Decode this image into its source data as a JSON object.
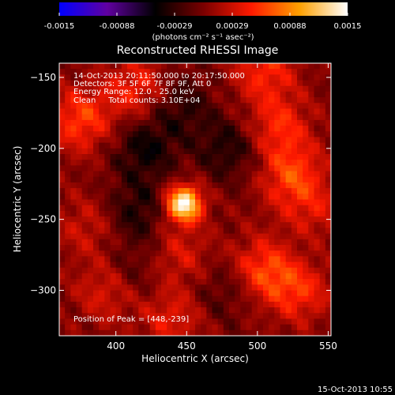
{
  "chart_data": {
    "type": "heatmap",
    "title": "Reconstructed RHESSI Image",
    "xlabel": "Heliocentric X (arcsec)",
    "ylabel": "Heliocentric Y (arcsec)",
    "xlim": [
      360,
      552
    ],
    "ylim": [
      -332,
      -140
    ],
    "x_ticks": [
      400,
      450,
      500,
      550
    ],
    "y_ticks": [
      -150,
      -200,
      -250,
      -300
    ],
    "annotations": [
      "14-Oct-2013 20:11:50.000 to 20:17:50.000",
      "Detectors: 3F 5F 6F 7F 8F 9F, Att 0",
      "Energy Range: 12.0 - 25.0 keV",
      "Clean     Total counts: 3.10E+04"
    ],
    "peak_label": "Position of Peak = [448,-239]",
    "peak": {
      "x": 448,
      "y": -239,
      "value": 0.0015
    },
    "colorbar": {
      "ticks": [
        "-0.0015",
        "-0.00088",
        "-0.00029",
        "0.00029",
        "0.00088",
        "0.0015"
      ],
      "range": [
        -0.0015,
        0.0015
      ],
      "units_label": "(photons cm⁻² s⁻¹ asec⁻²)"
    },
    "colormap": [
      "#0000ff",
      "#6000a0",
      "#000000",
      "#7a0000",
      "#ff1a00",
      "#ffa000",
      "#ffffff"
    ],
    "features": [
      {
        "x": 448,
        "y": -239,
        "value": 0.0015
      },
      {
        "x": 525,
        "y": -220,
        "value": 0.0006
      },
      {
        "x": 515,
        "y": -185,
        "value": 0.0005
      },
      {
        "x": 375,
        "y": -180,
        "value": 0.0006
      },
      {
        "x": 415,
        "y": -158,
        "value": 0.0005
      },
      {
        "x": 505,
        "y": -145,
        "value": 0.0005
      },
      {
        "x": 505,
        "y": -285,
        "value": 0.0006
      },
      {
        "x": 530,
        "y": -300,
        "value": 0.0005
      },
      {
        "x": 395,
        "y": -300,
        "value": 0.00045
      },
      {
        "x": 445,
        "y": -275,
        "value": 0.00035
      },
      {
        "x": 440,
        "y": -320,
        "value": 0.0004
      },
      {
        "x": 380,
        "y": -255,
        "value": 0.0003
      },
      {
        "x": 540,
        "y": -250,
        "value": 0.0004
      },
      {
        "x": 420,
        "y": -200,
        "value": -0.00045
      },
      {
        "x": 480,
        "y": -200,
        "value": -0.0004
      },
      {
        "x": 445,
        "y": -170,
        "value": -0.00035
      },
      {
        "x": 415,
        "y": -245,
        "value": -0.0004
      },
      {
        "x": 410,
        "y": -290,
        "value": -0.0003
      },
      {
        "x": 475,
        "y": -300,
        "value": -0.00025
      },
      {
        "x": 535,
        "y": -265,
        "value": -0.0002
      }
    ]
  },
  "timestamp": "15-Oct-2013 10:55"
}
